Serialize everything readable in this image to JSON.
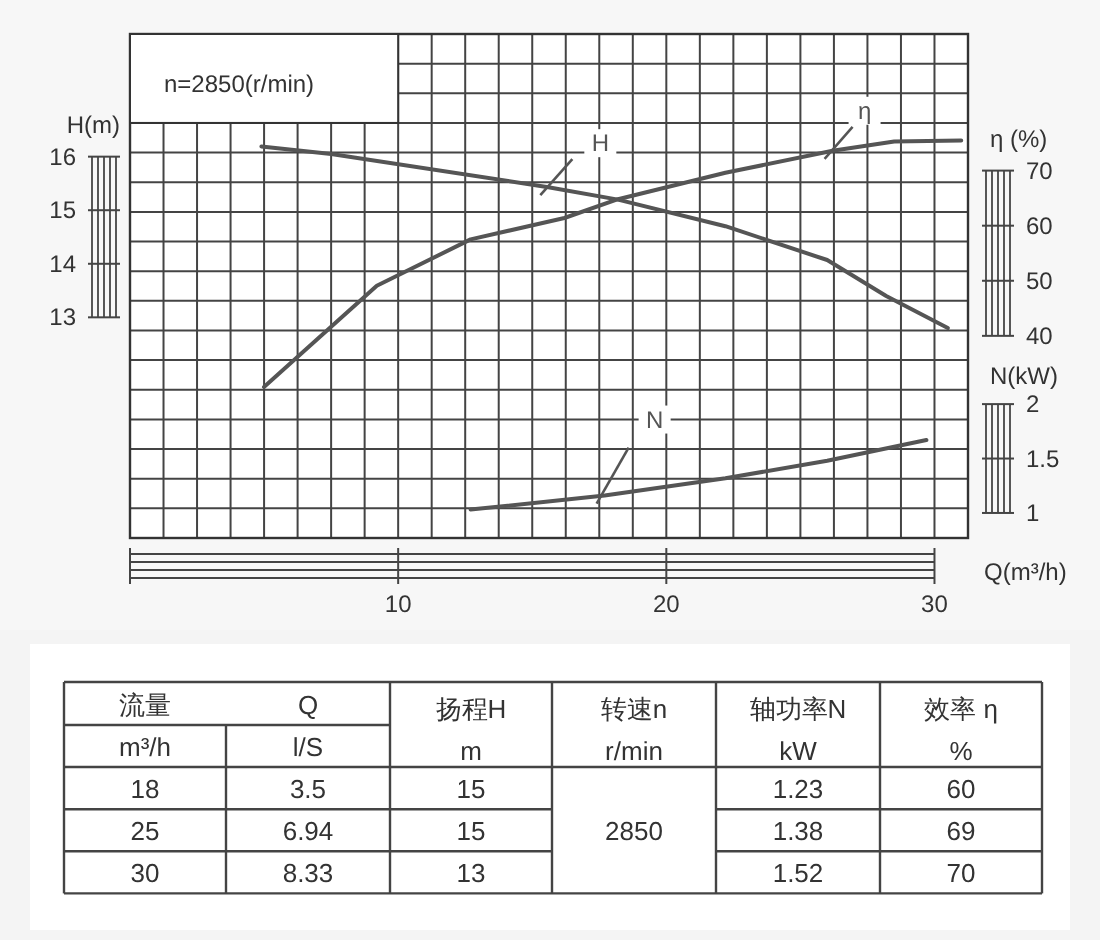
{
  "chart_data": [
    {
      "type": "line",
      "xlabel": "Q(m³/h)",
      "ylabel": "H(m)",
      "y2label": "η (%)",
      "y3label": "N(kW)",
      "xlim": [
        0,
        31.25
      ],
      "xticks": [
        10,
        20,
        30
      ],
      "ylim": [
        8.88,
        18.29
      ],
      "yticks": [
        13,
        14,
        15,
        16
      ],
      "y2lim": [
        3.3,
        94.8
      ],
      "y2ticks": [
        40,
        50,
        60,
        70
      ],
      "y3lim": [
        0.77,
        5.4
      ],
      "y3ticks": [
        1,
        1.5,
        2
      ],
      "grid": true,
      "annotations": [
        "n=2850(r/min)"
      ],
      "series": [
        {
          "name": "H",
          "color": "#555555",
          "x": [
            4.9,
            7.5,
            15.6,
            18.2,
            22.2,
            26,
            28.2,
            30.5
          ],
          "values": [
            16.19,
            16.05,
            15.43,
            15.2,
            14.7,
            14.07,
            13.4,
            12.8
          ]
        },
        {
          "name": "η",
          "color": "#555555",
          "axis": "y2",
          "x": [
            5,
            9.2,
            12.7,
            16.2,
            18.2,
            22.2,
            26.2,
            28.5,
            31
          ],
          "values": [
            30.7,
            49.1,
            57.5,
            61.4,
            64.8,
            69.6,
            73.6,
            75.3,
            75.5
          ]
        },
        {
          "name": "N",
          "color": "#555555",
          "axis": "y3",
          "x": [
            12.7,
            17.7,
            22.2,
            26,
            29.7
          ],
          "values": [
            1.03,
            1.16,
            1.32,
            1.48,
            1.67
          ]
        }
      ]
    },
    {
      "type": "other",
      "annotations": [
        "流量",
        "Q",
        "m³/h",
        "l/S",
        "扬程H",
        "m",
        "转速n",
        "r/min",
        "轴功率N",
        "kW",
        "效率 η",
        "%",
        "18",
        "3.5",
        "15",
        "2850",
        "1.23",
        "60",
        "25",
        "6.94",
        "15",
        "1.38",
        "69",
        "30",
        "8.33",
        "13",
        "1.52",
        "70"
      ]
    }
  ]
}
